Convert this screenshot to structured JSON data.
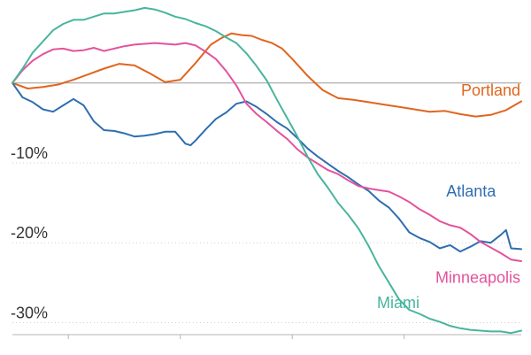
{
  "chart_data": {
    "type": "line",
    "title": "",
    "xlabel": "",
    "ylabel": "",
    "ylim": [
      -31.5,
      9.5
    ],
    "yticks": [
      {
        "value": -10,
        "label": "-10%"
      },
      {
        "value": -20,
        "label": "-20%"
      },
      {
        "value": -30,
        "label": "-30%"
      }
    ],
    "grid": true,
    "zero_line": true,
    "xlim": [
      0,
      100
    ],
    "xticks": [
      11,
      33,
      55,
      77
    ],
    "series": [
      {
        "name": "Portland",
        "color": "#e0651e",
        "x": [
          0,
          3,
          6,
          9,
          12,
          15,
          18,
          21,
          24,
          27,
          30,
          33,
          36,
          39,
          41,
          43,
          45,
          47,
          49,
          51,
          53,
          55,
          58,
          61,
          64,
          67,
          70,
          73,
          76,
          79,
          82,
          85,
          88,
          91,
          94,
          97,
          100
        ],
        "values": [
          0,
          -0.7,
          -0.5,
          -0.2,
          0.4,
          1.1,
          1.8,
          2.4,
          2.2,
          1.2,
          0.1,
          0.4,
          2.5,
          4.8,
          5.6,
          6.2,
          6.0,
          5.9,
          5.4,
          5.0,
          4.3,
          3.0,
          0.9,
          -0.9,
          -1.9,
          -2.1,
          -2.4,
          -2.7,
          -3.0,
          -3.3,
          -3.6,
          -3.5,
          -3.9,
          -4.2,
          -4.0,
          -3.4,
          -2.3
        ]
      },
      {
        "name": "Atlanta",
        "color": "#2f6eb0",
        "x": [
          0,
          2,
          4,
          6,
          8,
          10,
          12,
          14,
          16,
          18,
          20,
          22,
          24,
          26,
          28,
          30,
          32,
          34,
          35,
          36,
          38,
          40,
          42,
          44,
          46,
          48,
          50,
          52,
          54,
          56,
          58,
          60,
          62,
          64,
          66,
          68,
          70,
          72,
          74,
          76,
          78,
          80,
          82,
          84,
          86,
          88,
          90,
          92,
          94,
          96,
          97,
          98,
          100
        ],
        "values": [
          0,
          -1.8,
          -2.4,
          -3.3,
          -3.6,
          -2.8,
          -2.0,
          -2.8,
          -4.8,
          -5.9,
          -6.0,
          -6.3,
          -6.7,
          -6.6,
          -6.4,
          -6.1,
          -6.1,
          -7.6,
          -7.8,
          -7.2,
          -5.8,
          -4.5,
          -3.7,
          -2.6,
          -2.3,
          -3.0,
          -3.9,
          -4.9,
          -5.7,
          -6.9,
          -8.2,
          -9.2,
          -10.1,
          -11.0,
          -11.8,
          -12.7,
          -13.5,
          -14.7,
          -15.6,
          -17.0,
          -18.7,
          -19.4,
          -19.9,
          -20.7,
          -20.3,
          -21.1,
          -20.5,
          -19.8,
          -20.0,
          -19.0,
          -18.4,
          -20.7,
          -20.8
        ]
      },
      {
        "name": "Minneapolis",
        "color": "#e3539c",
        "x": [
          0,
          2,
          4,
          6,
          8,
          10,
          12,
          14,
          16,
          18,
          20,
          22,
          24,
          26,
          28,
          30,
          32,
          34,
          36,
          38,
          40,
          42,
          44,
          46,
          48,
          50,
          52,
          54,
          56,
          58,
          60,
          62,
          64,
          66,
          68,
          70,
          72,
          74,
          76,
          78,
          80,
          82,
          84,
          86,
          88,
          90,
          92,
          94,
          96,
          98,
          100
        ],
        "values": [
          0,
          1.6,
          2.8,
          3.6,
          4.2,
          4.3,
          4.0,
          4.1,
          4.4,
          4.0,
          4.3,
          4.6,
          4.8,
          4.9,
          5.0,
          4.9,
          4.8,
          5.0,
          4.7,
          3.9,
          3.0,
          1.5,
          -0.3,
          -2.6,
          -3.9,
          -4.9,
          -6.0,
          -7.0,
          -8.3,
          -9.3,
          -10.1,
          -10.9,
          -11.4,
          -12.2,
          -12.9,
          -13.2,
          -13.4,
          -13.6,
          -14.2,
          -14.9,
          -15.8,
          -16.5,
          -17.3,
          -17.8,
          -18.1,
          -18.9,
          -19.9,
          -20.6,
          -21.3,
          -22.1,
          -22.3
        ]
      },
      {
        "name": "Miami",
        "color": "#48b59d",
        "x": [
          0,
          2,
          4,
          6,
          8,
          10,
          12,
          14,
          16,
          18,
          20,
          22,
          24,
          26,
          28,
          30,
          32,
          34,
          36,
          38,
          40,
          42,
          44,
          46,
          48,
          50,
          52,
          54,
          56,
          58,
          60,
          62,
          64,
          66,
          68,
          70,
          72,
          74,
          76,
          78,
          80,
          82,
          84,
          86,
          88,
          90,
          92,
          94,
          96,
          98,
          100
        ],
        "values": [
          0,
          1.8,
          3.8,
          5.2,
          6.6,
          7.4,
          7.9,
          7.9,
          8.3,
          8.7,
          8.7,
          8.9,
          9.1,
          9.4,
          9.2,
          8.8,
          8.3,
          8.0,
          7.5,
          7.1,
          6.5,
          5.7,
          5.0,
          3.7,
          2.1,
          0.3,
          -2.1,
          -4.4,
          -6.7,
          -9.2,
          -11.4,
          -13.1,
          -15.0,
          -16.5,
          -18.2,
          -20.4,
          -22.9,
          -25.0,
          -27.1,
          -28.4,
          -28.9,
          -29.5,
          -29.9,
          -30.4,
          -30.7,
          -30.9,
          -31.0,
          -31.1,
          -31.1,
          -31.3,
          -31.0
        ]
      }
    ],
    "labels": [
      {
        "series": "Portland",
        "text": "Portland",
        "anchor_x": 100,
        "anchor_y": -1.6,
        "align": "end"
      },
      {
        "series": "Atlanta",
        "text": "Atlanta",
        "anchor_x": 95,
        "anchor_y": -14.2,
        "align": "end"
      },
      {
        "series": "Minneapolis",
        "text": "Minneapolis",
        "anchor_x": 100,
        "anchor_y": -25.0,
        "align": "end"
      },
      {
        "series": "Miami",
        "text": "Miami",
        "anchor_x": 80,
        "anchor_y": -28.2,
        "align": "end"
      }
    ]
  }
}
